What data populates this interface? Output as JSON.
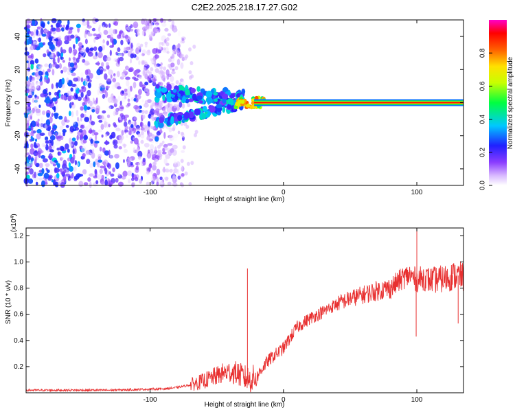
{
  "title": "C2E2.2025.218.17.27.G02",
  "chart_data": [
    {
      "type": "heatmap",
      "xlabel": "Height of straight line (km)",
      "ylabel": "Frequency (Hz)",
      "xlim": [
        -193,
        135
      ],
      "ylim": [
        -50,
        50
      ],
      "xticks": [
        -100,
        0,
        100
      ],
      "yticks": [
        -40,
        -20,
        0,
        20,
        40
      ],
      "colorbar": {
        "label": "Normalized spectral amplitude",
        "range": [
          0,
          1
        ],
        "ticks": [
          0.0,
          0.2,
          0.4,
          0.6,
          0.8
        ],
        "colormap": [
          "#ffffff",
          "#c8a0ff",
          "#7a2cf0",
          "#2a2aff",
          "#00c0ff",
          "#00ff40",
          "#ffff00",
          "#ff6000",
          "#ff0000",
          "#ff00c0"
        ]
      },
      "features": {
        "carrier_line": {
          "x_range": [
            -30,
            135
          ],
          "frequency": 0,
          "amplitude": 0.95
        },
        "noise_region": {
          "x_range": [
            -193,
            -75
          ],
          "frequency_range": [
            -50,
            50
          ],
          "amplitude": 0.25
        },
        "transition": {
          "x_range": [
            -95,
            -30
          ],
          "frequency_range": [
            -15,
            12
          ],
          "amplitude": 0.55
        }
      }
    },
    {
      "type": "line",
      "xlabel": "Height of straight line (km)",
      "ylabel": "SNR (10 * v/v)",
      "y_multiplier_label": "(x10",
      "y_multiplier_exp": "4",
      "y_multiplier_close": ")",
      "xlim": [
        -193,
        135
      ],
      "ylim": [
        0,
        1.26
      ],
      "xticks": [
        -100,
        0,
        100
      ],
      "yticks": [
        0.2,
        0.4,
        0.6,
        0.8,
        1.0,
        1.2
      ],
      "color": "#e83030",
      "series": [
        {
          "x": [
            -193,
            -170,
            -150,
            -130,
            -110,
            -90,
            -80,
            -70,
            -60,
            -55,
            -50,
            -45,
            -40,
            -35,
            -30,
            -25,
            -20,
            -15,
            -10,
            -5,
            0,
            5,
            10,
            20,
            30,
            40,
            50,
            60,
            70,
            80,
            85,
            90,
            95,
            100,
            105,
            110,
            120,
            130,
            135
          ],
          "y": [
            0.02,
            0.02,
            0.02,
            0.02,
            0.025,
            0.03,
            0.04,
            0.06,
            0.09,
            0.11,
            0.13,
            0.15,
            0.16,
            0.15,
            0.12,
            0.1,
            0.12,
            0.2,
            0.26,
            0.3,
            0.34,
            0.42,
            0.5,
            0.57,
            0.62,
            0.68,
            0.72,
            0.75,
            0.78,
            0.8,
            0.84,
            0.88,
            0.9,
            0.86,
            0.88,
            0.86,
            0.87,
            0.9,
            0.88
          ]
        }
      ],
      "spikes": [
        {
          "x": -27,
          "y": 0.95
        },
        {
          "x": 100,
          "y": 1.26
        },
        {
          "x": 99.5,
          "y": 0.43
        },
        {
          "x": 131,
          "y": 0.53
        }
      ]
    }
  ]
}
